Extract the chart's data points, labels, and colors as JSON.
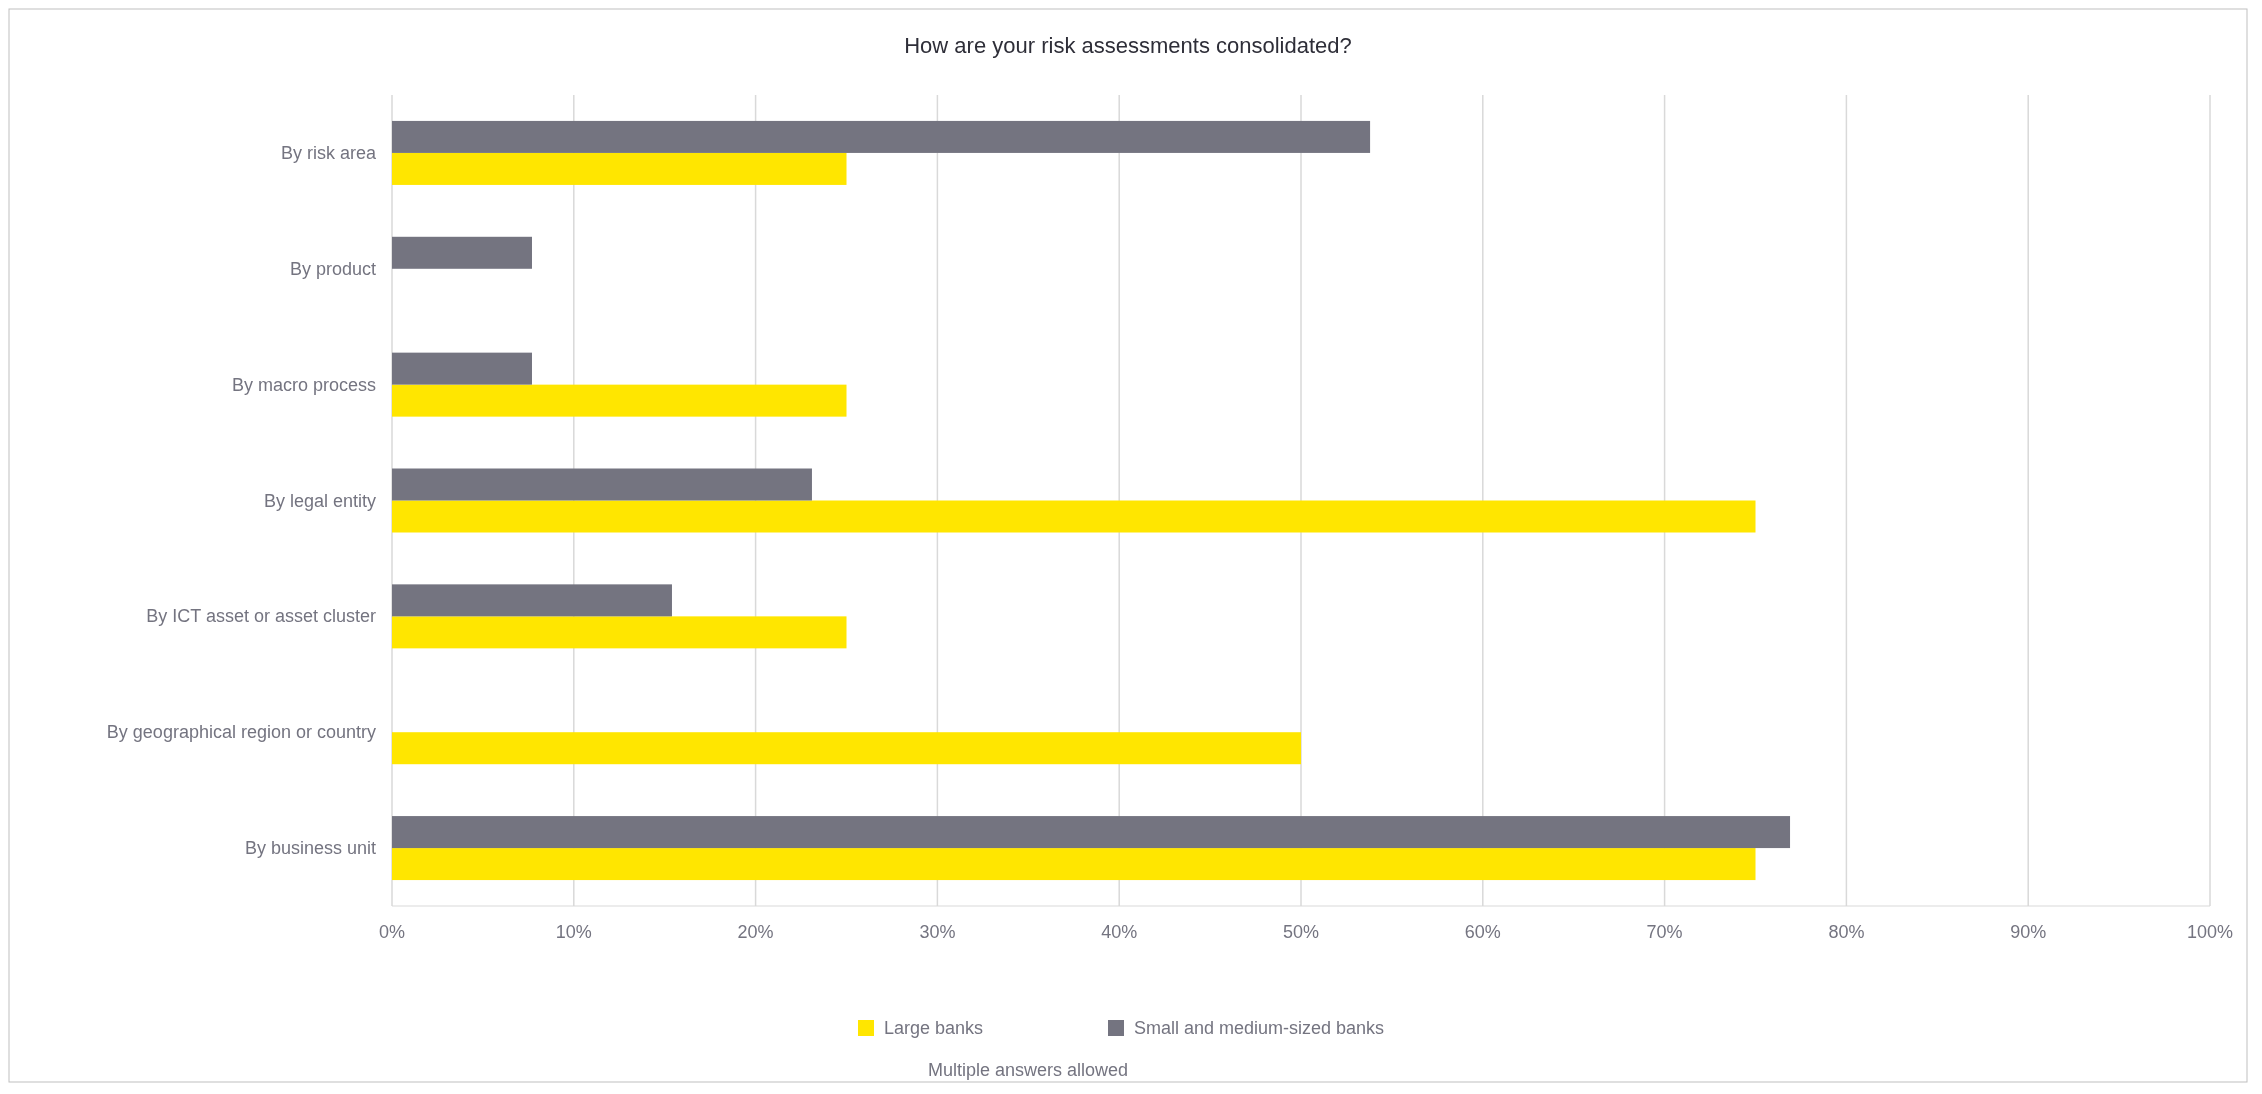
{
  "chart_data": {
    "type": "bar",
    "orientation": "horizontal",
    "title": "How are your risk assessments consolidated?",
    "categories": [
      "By risk area",
      "By product",
      "By macro process",
      "By legal entity",
      "By ICT asset or asset cluster",
      "By geographical region or country",
      "By business unit"
    ],
    "series": [
      {
        "name": "Large banks",
        "color": "#ffe600",
        "values": [
          25,
          null,
          25,
          75,
          25,
          50,
          75
        ]
      },
      {
        "name": "Small and medium-sized banks",
        "color": "#747480",
        "values": [
          53.8,
          7.7,
          7.7,
          23.1,
          15.4,
          null,
          76.9
        ]
      }
    ],
    "xlim": [
      0,
      100
    ],
    "xticks": [
      {
        "value": 0,
        "label": "0%"
      },
      {
        "value": 10,
        "label": "10%"
      },
      {
        "value": 20,
        "label": "20%"
      },
      {
        "value": 30,
        "label": "30%"
      },
      {
        "value": 40,
        "label": "40%"
      },
      {
        "value": 50,
        "label": "50%"
      },
      {
        "value": 60,
        "label": "60%"
      },
      {
        "value": 70,
        "label": "70%"
      },
      {
        "value": 80,
        "label": "80%"
      },
      {
        "value": 90,
        "label": "90%"
      },
      {
        "value": 100,
        "label": "100%"
      }
    ],
    "grid": "x",
    "legend": "bottom",
    "annotations": [
      "Multiple answers allowed"
    ]
  }
}
